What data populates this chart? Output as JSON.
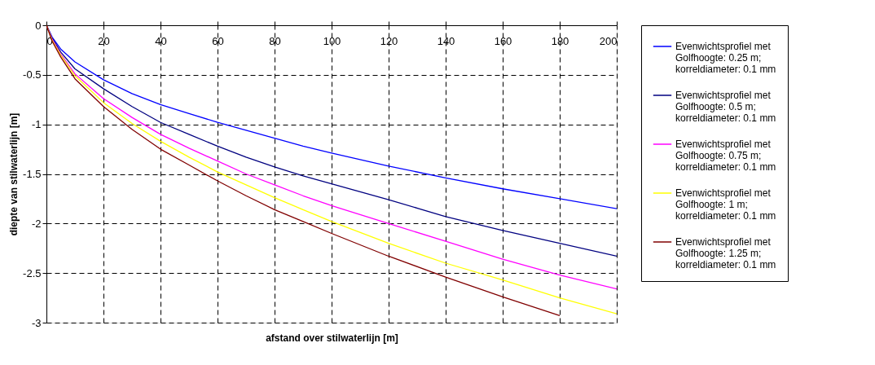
{
  "chart_data": {
    "type": "line",
    "xlabel": "afstand over stilwaterlijn [m]",
    "ylabel": "diepte van stilwaterlijn [m]",
    "xlim": [
      0,
      200
    ],
    "xticks": [
      0,
      20,
      40,
      60,
      80,
      100,
      120,
      140,
      160,
      180,
      200
    ],
    "ylim": [
      -3,
      0
    ],
    "yticks": [
      -3,
      -2.5,
      -2,
      -1.5,
      -1,
      -0.5,
      0
    ],
    "grid": true,
    "legend": "right",
    "line_style": "solid",
    "marker": "none",
    "x": [
      0,
      2,
      5,
      10,
      20,
      30,
      40,
      50,
      60,
      70,
      80,
      90,
      100,
      120,
      140,
      160,
      180,
      200
    ],
    "series": [
      {
        "name": "Evenwichtsprofiel met Golfhoogte: 0.25 m; korreldiameter: 0.1 mm",
        "color": "#0000ff",
        "values": [
          0,
          -0.12,
          -0.24,
          -0.37,
          -0.55,
          -0.69,
          -0.8,
          -0.89,
          -0.98,
          -1.06,
          -1.14,
          -1.22,
          -1.29,
          -1.42,
          -1.54,
          -1.65,
          -1.75,
          -1.85
        ]
      },
      {
        "name": "Evenwichtsprofiel met Golfhoogte: 0.5 m; korreldiameter: 0.1 mm",
        "color": "#000080",
        "values": [
          0,
          -0.13,
          -0.27,
          -0.44,
          -0.64,
          -0.82,
          -0.98,
          -1.1,
          -1.22,
          -1.33,
          -1.43,
          -1.52,
          -1.6,
          -1.76,
          -1.93,
          -2.07,
          -2.2,
          -2.33
        ]
      },
      {
        "name": "Evenwichtsprofiel met Golfhoogte: 0.75 m; korreldiameter: 0.1 mm",
        "color": "#ff00ff",
        "values": [
          0,
          -0.14,
          -0.29,
          -0.49,
          -0.74,
          -0.93,
          -1.1,
          -1.24,
          -1.37,
          -1.5,
          -1.61,
          -1.72,
          -1.82,
          -2.0,
          -2.18,
          -2.36,
          -2.52,
          -2.66
        ]
      },
      {
        "name": "Evenwichtsprofiel met Golfhoogte: 1 m; korreldiameter: 0.1 mm",
        "color": "#ffff00",
        "values": [
          0,
          -0.15,
          -0.3,
          -0.51,
          -0.78,
          -0.99,
          -1.17,
          -1.33,
          -1.48,
          -1.61,
          -1.74,
          -1.86,
          -1.98,
          -2.2,
          -2.4,
          -2.57,
          -2.75,
          -2.91
        ]
      },
      {
        "name": "Evenwichtsprofiel met Golfhoogte: 1.25 m; korreldiameter: 0.1 mm",
        "color": "#800000",
        "values": [
          0,
          -0.16,
          -0.32,
          -0.54,
          -0.82,
          -1.05,
          -1.25,
          -1.41,
          -1.57,
          -1.72,
          -1.86,
          -1.98,
          -2.1,
          -2.33,
          -2.54,
          -2.74,
          -2.93,
          null
        ]
      }
    ]
  }
}
